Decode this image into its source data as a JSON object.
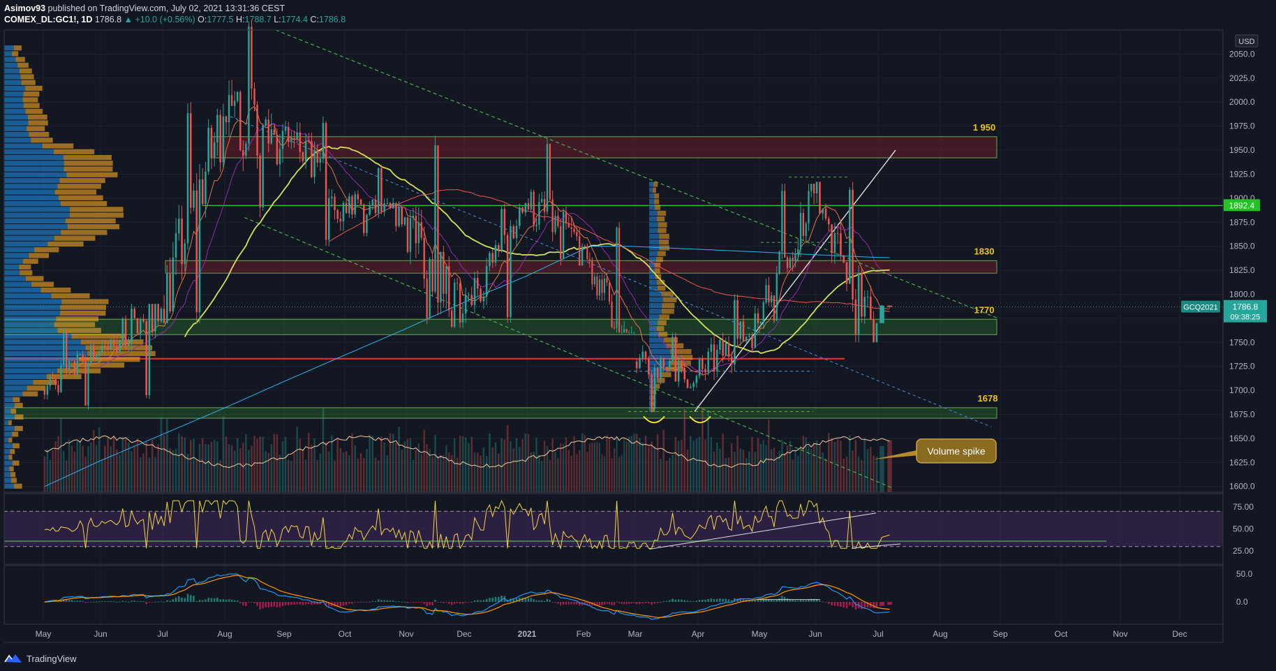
{
  "header": {
    "author": "Asimov93",
    "published": "published on TradingView.com, July 02, 2021 13:31:36 CEST",
    "symbol": "COMEX_DL:GC1!, 1D",
    "last": "1786.8",
    "change": "+10.0 (+0.56%)",
    "o_label": "O:",
    "o": "1777.5",
    "h_label": "H:",
    "h": "1788.7",
    "l_label": "L:",
    "l": "1774.4",
    "c_label": "C:",
    "c": "1786.8"
  },
  "footer": {
    "brand": "TradingView"
  },
  "colors": {
    "bg": "#131722",
    "up": "#26a69a",
    "down": "#ef5350",
    "grid": "#1e2230",
    "support_zone": "#2e7d32",
    "resistance_zone": "#7b1f2a",
    "axis_text": "#b2b5be",
    "zone_label": "#f0c419"
  },
  "chart_data": [
    {
      "type": "candlestick",
      "currency": "USD",
      "x_ticks": [
        "May",
        "Jun",
        "Jul",
        "Aug",
        "Sep",
        "Oct",
        "Nov",
        "Dec",
        "2021",
        "Feb",
        "Mar",
        "Apr",
        "May",
        "Jun",
        "Jul",
        "Aug",
        "Sep",
        "Oct",
        "Nov",
        "Dec"
      ],
      "y_ticks": [
        "2050.0",
        "2025.0",
        "2000.0",
        "1975.0",
        "1950.0",
        "1925.0",
        "1900.0",
        "1875.0",
        "1850.0",
        "1825.0",
        "1800.0",
        "1775.0",
        "1750.0",
        "1725.0",
        "1700.0",
        "1675.0",
        "1650.0",
        "1625.0",
        "1600.0"
      ],
      "ylim": [
        1594,
        2075
      ],
      "monthly_ohlc": [
        {
          "m": "May 2020",
          "o": 1700,
          "h": 1765,
          "l": 1680,
          "c": 1740
        },
        {
          "m": "Jun 2020",
          "o": 1740,
          "h": 1790,
          "l": 1690,
          "c": 1785
        },
        {
          "m": "Jul 2020",
          "o": 1785,
          "h": 2000,
          "l": 1770,
          "c": 1985
        },
        {
          "m": "Aug 2020",
          "o": 1985,
          "h": 2089,
          "l": 1880,
          "c": 1970
        },
        {
          "m": "Sep 2020",
          "o": 1970,
          "h": 1985,
          "l": 1850,
          "c": 1895
        },
        {
          "m": "Oct 2020",
          "o": 1895,
          "h": 1935,
          "l": 1860,
          "c": 1880
        },
        {
          "m": "Nov 2020",
          "o": 1880,
          "h": 1965,
          "l": 1765,
          "c": 1780
        },
        {
          "m": "Dec 2020",
          "o": 1780,
          "h": 1895,
          "l": 1770,
          "c": 1895
        },
        {
          "m": "Jan 2021",
          "o": 1895,
          "h": 1963,
          "l": 1830,
          "c": 1850
        },
        {
          "m": "Feb 2021",
          "o": 1850,
          "h": 1875,
          "l": 1760,
          "c": 1730
        },
        {
          "m": "Mar 2021",
          "o": 1730,
          "h": 1760,
          "l": 1677,
          "c": 1715
        },
        {
          "m": "Apr 2021",
          "o": 1715,
          "h": 1800,
          "l": 1680,
          "c": 1770
        },
        {
          "m": "May 2021",
          "o": 1770,
          "h": 1915,
          "l": 1765,
          "c": 1905
        },
        {
          "m": "Jun 2021",
          "o": 1905,
          "h": 1917,
          "l": 1750,
          "c": 1770
        },
        {
          "m": "Jul 2021",
          "o": 1770,
          "h": 1789,
          "l": 1774,
          "c": 1786.8
        }
      ],
      "zones": [
        {
          "label": "1 950",
          "from": 1942,
          "to": 1964,
          "kind": "resistance"
        },
        {
          "label": "1830",
          "from": 1822,
          "to": 1835,
          "kind": "resistance"
        },
        {
          "label": "1770",
          "from": 1758,
          "to": 1774,
          "kind": "support"
        },
        {
          "label": "1678",
          "from": 1671,
          "to": 1682,
          "kind": "support"
        }
      ],
      "levels": [
        {
          "value": 1733,
          "color": "red"
        },
        {
          "value": 1892.4,
          "color": "green"
        }
      ],
      "price_tags": [
        {
          "symbol": "GCQ2021",
          "value": "1786.8",
          "timer": "09:38:25"
        },
        {
          "value": "1892.4"
        }
      ],
      "annotation": "Volume spike"
    },
    {
      "type": "line",
      "indicator": "RSI",
      "y_ticks": [
        "75.00",
        "50.00",
        "25.00"
      ],
      "ylim": [
        10,
        90
      ],
      "levels": [
        70,
        30
      ]
    },
    {
      "type": "line",
      "indicator": "MACD",
      "y_ticks": [
        "50.0",
        "0.0"
      ],
      "ylim": [
        -40,
        65
      ]
    }
  ]
}
